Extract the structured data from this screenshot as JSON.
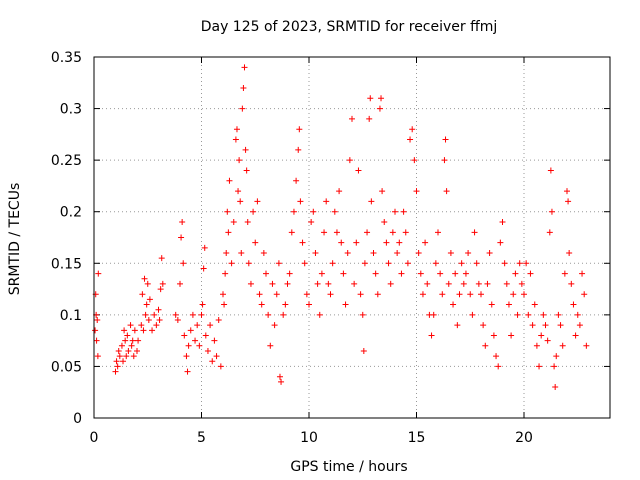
{
  "chart_data": {
    "type": "scatter",
    "title": "Day 125 of 2023, SRMTID for receiver ffmj",
    "xlabel": "GPS time / hours",
    "ylabel": "SRMTID / TECUs",
    "xlim": [
      0,
      24
    ],
    "ylim": [
      0,
      0.35
    ],
    "x_ticks": [
      0,
      5,
      10,
      15,
      20
    ],
    "x_tick_labels": [
      "0",
      "5",
      "10",
      "15",
      "20"
    ],
    "y_ticks": [
      0,
      0.05,
      0.1,
      0.15,
      0.2,
      0.25,
      0.3,
      0.35
    ],
    "y_tick_labels": [
      "0",
      "0.05",
      "0.1",
      "0.15",
      "0.2",
      "0.25",
      "0.3",
      "0.35"
    ],
    "grid": true,
    "legend": "none",
    "marker": "+",
    "color": "#ff0000",
    "series": [
      {
        "points": [
          [
            0.05,
            0.085
          ],
          [
            0.08,
            0.12
          ],
          [
            0.1,
            0.1
          ],
          [
            0.12,
            0.075
          ],
          [
            0.15,
            0.095
          ],
          [
            0.18,
            0.06
          ],
          [
            0.2,
            0.14
          ],
          [
            1.0,
            0.045
          ],
          [
            1.05,
            0.055
          ],
          [
            1.1,
            0.05
          ],
          [
            1.15,
            0.065
          ],
          [
            1.2,
            0.06
          ],
          [
            1.3,
            0.07
          ],
          [
            1.35,
            0.055
          ],
          [
            1.4,
            0.085
          ],
          [
            1.45,
            0.075
          ],
          [
            1.5,
            0.06
          ],
          [
            1.55,
            0.08
          ],
          [
            1.6,
            0.065
          ],
          [
            1.7,
            0.09
          ],
          [
            1.75,
            0.07
          ],
          [
            1.8,
            0.075
          ],
          [
            1.85,
            0.06
          ],
          [
            1.9,
            0.085
          ],
          [
            2.0,
            0.065
          ],
          [
            2.05,
            0.075
          ],
          [
            2.2,
            0.09
          ],
          [
            2.25,
            0.12
          ],
          [
            2.3,
            0.085
          ],
          [
            2.35,
            0.135
          ],
          [
            2.4,
            0.1
          ],
          [
            2.45,
            0.11
          ],
          [
            2.5,
            0.13
          ],
          [
            2.55,
            0.095
          ],
          [
            2.6,
            0.115
          ],
          [
            2.7,
            0.085
          ],
          [
            2.8,
            0.1
          ],
          [
            2.9,
            0.09
          ],
          [
            3.0,
            0.105
          ],
          [
            3.05,
            0.095
          ],
          [
            3.1,
            0.125
          ],
          [
            3.15,
            0.155
          ],
          [
            3.2,
            0.13
          ],
          [
            3.8,
            0.1
          ],
          [
            3.9,
            0.095
          ],
          [
            4.0,
            0.13
          ],
          [
            4.05,
            0.175
          ],
          [
            4.1,
            0.19
          ],
          [
            4.15,
            0.15
          ],
          [
            4.2,
            0.08
          ],
          [
            4.3,
            0.06
          ],
          [
            4.35,
            0.045
          ],
          [
            4.4,
            0.07
          ],
          [
            4.5,
            0.085
          ],
          [
            4.6,
            0.1
          ],
          [
            4.7,
            0.075
          ],
          [
            4.8,
            0.09
          ],
          [
            4.9,
            0.07
          ],
          [
            5.0,
            0.1
          ],
          [
            5.05,
            0.11
          ],
          [
            5.1,
            0.145
          ],
          [
            5.15,
            0.165
          ],
          [
            5.2,
            0.08
          ],
          [
            5.3,
            0.065
          ],
          [
            5.4,
            0.09
          ],
          [
            5.5,
            0.055
          ],
          [
            5.6,
            0.075
          ],
          [
            5.7,
            0.06
          ],
          [
            5.8,
            0.095
          ],
          [
            5.9,
            0.05
          ],
          [
            6.0,
            0.12
          ],
          [
            6.05,
            0.11
          ],
          [
            6.1,
            0.14
          ],
          [
            6.15,
            0.16
          ],
          [
            6.2,
            0.2
          ],
          [
            6.25,
            0.18
          ],
          [
            6.3,
            0.23
          ],
          [
            6.4,
            0.15
          ],
          [
            6.5,
            0.19
          ],
          [
            6.6,
            0.27
          ],
          [
            6.65,
            0.28
          ],
          [
            6.7,
            0.22
          ],
          [
            6.75,
            0.25
          ],
          [
            6.8,
            0.21
          ],
          [
            6.85,
            0.16
          ],
          [
            6.9,
            0.3
          ],
          [
            6.95,
            0.32
          ],
          [
            7.0,
            0.34
          ],
          [
            7.05,
            0.26
          ],
          [
            7.1,
            0.24
          ],
          [
            7.15,
            0.19
          ],
          [
            7.2,
            0.15
          ],
          [
            7.3,
            0.13
          ],
          [
            7.4,
            0.2
          ],
          [
            7.5,
            0.17
          ],
          [
            7.6,
            0.21
          ],
          [
            7.7,
            0.12
          ],
          [
            7.8,
            0.11
          ],
          [
            7.9,
            0.16
          ],
          [
            8.0,
            0.14
          ],
          [
            8.1,
            0.1
          ],
          [
            8.2,
            0.07
          ],
          [
            8.3,
            0.13
          ],
          [
            8.4,
            0.09
          ],
          [
            8.5,
            0.12
          ],
          [
            8.6,
            0.15
          ],
          [
            8.65,
            0.04
          ],
          [
            8.7,
            0.035
          ],
          [
            8.8,
            0.1
          ],
          [
            8.9,
            0.11
          ],
          [
            9.0,
            0.13
          ],
          [
            9.1,
            0.14
          ],
          [
            9.2,
            0.18
          ],
          [
            9.3,
            0.2
          ],
          [
            9.4,
            0.23
          ],
          [
            9.5,
            0.26
          ],
          [
            9.55,
            0.28
          ],
          [
            9.6,
            0.21
          ],
          [
            9.7,
            0.17
          ],
          [
            9.8,
            0.15
          ],
          [
            9.9,
            0.12
          ],
          [
            10.0,
            0.11
          ],
          [
            10.1,
            0.19
          ],
          [
            10.2,
            0.2
          ],
          [
            10.3,
            0.16
          ],
          [
            10.4,
            0.13
          ],
          [
            10.5,
            0.1
          ],
          [
            10.6,
            0.14
          ],
          [
            10.7,
            0.18
          ],
          [
            10.8,
            0.21
          ],
          [
            10.9,
            0.13
          ],
          [
            11.0,
            0.12
          ],
          [
            11.1,
            0.15
          ],
          [
            11.2,
            0.2
          ],
          [
            11.3,
            0.18
          ],
          [
            11.4,
            0.22
          ],
          [
            11.5,
            0.17
          ],
          [
            11.6,
            0.14
          ],
          [
            11.7,
            0.11
          ],
          [
            11.8,
            0.16
          ],
          [
            11.9,
            0.25
          ],
          [
            12.0,
            0.29
          ],
          [
            12.1,
            0.13
          ],
          [
            12.2,
            0.17
          ],
          [
            12.3,
            0.24
          ],
          [
            12.4,
            0.12
          ],
          [
            12.5,
            0.1
          ],
          [
            12.55,
            0.065
          ],
          [
            12.6,
            0.15
          ],
          [
            12.7,
            0.18
          ],
          [
            12.8,
            0.29
          ],
          [
            12.85,
            0.31
          ],
          [
            12.9,
            0.21
          ],
          [
            13.0,
            0.16
          ],
          [
            13.1,
            0.14
          ],
          [
            13.2,
            0.12
          ],
          [
            13.3,
            0.3
          ],
          [
            13.35,
            0.31
          ],
          [
            13.4,
            0.22
          ],
          [
            13.5,
            0.19
          ],
          [
            13.6,
            0.17
          ],
          [
            13.7,
            0.15
          ],
          [
            13.8,
            0.13
          ],
          [
            13.9,
            0.18
          ],
          [
            14.0,
            0.2
          ],
          [
            14.1,
            0.16
          ],
          [
            14.2,
            0.17
          ],
          [
            14.3,
            0.14
          ],
          [
            14.4,
            0.2
          ],
          [
            14.5,
            0.18
          ],
          [
            14.6,
            0.15
          ],
          [
            14.7,
            0.27
          ],
          [
            14.8,
            0.28
          ],
          [
            14.9,
            0.25
          ],
          [
            15.0,
            0.22
          ],
          [
            15.1,
            0.16
          ],
          [
            15.2,
            0.14
          ],
          [
            15.3,
            0.12
          ],
          [
            15.4,
            0.17
          ],
          [
            15.5,
            0.13
          ],
          [
            15.6,
            0.1
          ],
          [
            15.7,
            0.08
          ],
          [
            15.8,
            0.1
          ],
          [
            15.9,
            0.15
          ],
          [
            16.0,
            0.18
          ],
          [
            16.1,
            0.14
          ],
          [
            16.2,
            0.12
          ],
          [
            16.3,
            0.25
          ],
          [
            16.35,
            0.27
          ],
          [
            16.4,
            0.22
          ],
          [
            16.5,
            0.13
          ],
          [
            16.6,
            0.16
          ],
          [
            16.7,
            0.11
          ],
          [
            16.8,
            0.14
          ],
          [
            16.9,
            0.09
          ],
          [
            17.0,
            0.12
          ],
          [
            17.1,
            0.15
          ],
          [
            17.2,
            0.13
          ],
          [
            17.3,
            0.14
          ],
          [
            17.4,
            0.16
          ],
          [
            17.5,
            0.12
          ],
          [
            17.6,
            0.1
          ],
          [
            17.7,
            0.18
          ],
          [
            17.8,
            0.15
          ],
          [
            17.9,
            0.13
          ],
          [
            18.0,
            0.12
          ],
          [
            18.1,
            0.09
          ],
          [
            18.2,
            0.07
          ],
          [
            18.3,
            0.13
          ],
          [
            18.4,
            0.16
          ],
          [
            18.5,
            0.11
          ],
          [
            18.6,
            0.08
          ],
          [
            18.7,
            0.06
          ],
          [
            18.8,
            0.05
          ],
          [
            18.9,
            0.17
          ],
          [
            19.0,
            0.19
          ],
          [
            19.1,
            0.15
          ],
          [
            19.2,
            0.13
          ],
          [
            19.3,
            0.11
          ],
          [
            19.4,
            0.08
          ],
          [
            19.5,
            0.12
          ],
          [
            19.6,
            0.14
          ],
          [
            19.7,
            0.1
          ],
          [
            19.8,
            0.15
          ],
          [
            19.9,
            0.13
          ],
          [
            20.0,
            0.12
          ],
          [
            20.1,
            0.15
          ],
          [
            20.2,
            0.1
          ],
          [
            20.3,
            0.14
          ],
          [
            20.4,
            0.09
          ],
          [
            20.5,
            0.11
          ],
          [
            20.6,
            0.07
          ],
          [
            20.7,
            0.05
          ],
          [
            20.8,
            0.08
          ],
          [
            20.9,
            0.1
          ],
          [
            21.0,
            0.09
          ],
          [
            21.1,
            0.075
          ],
          [
            21.2,
            0.18
          ],
          [
            21.25,
            0.24
          ],
          [
            21.3,
            0.2
          ],
          [
            21.4,
            0.05
          ],
          [
            21.45,
            0.03
          ],
          [
            21.5,
            0.06
          ],
          [
            21.6,
            0.1
          ],
          [
            21.7,
            0.09
          ],
          [
            21.8,
            0.07
          ],
          [
            21.9,
            0.14
          ],
          [
            22.0,
            0.22
          ],
          [
            22.05,
            0.21
          ],
          [
            22.1,
            0.16
          ],
          [
            22.2,
            0.13
          ],
          [
            22.3,
            0.11
          ],
          [
            22.4,
            0.08
          ],
          [
            22.5,
            0.1
          ],
          [
            22.6,
            0.09
          ],
          [
            22.7,
            0.14
          ],
          [
            22.8,
            0.12
          ],
          [
            22.9,
            0.07
          ]
        ]
      }
    ]
  }
}
